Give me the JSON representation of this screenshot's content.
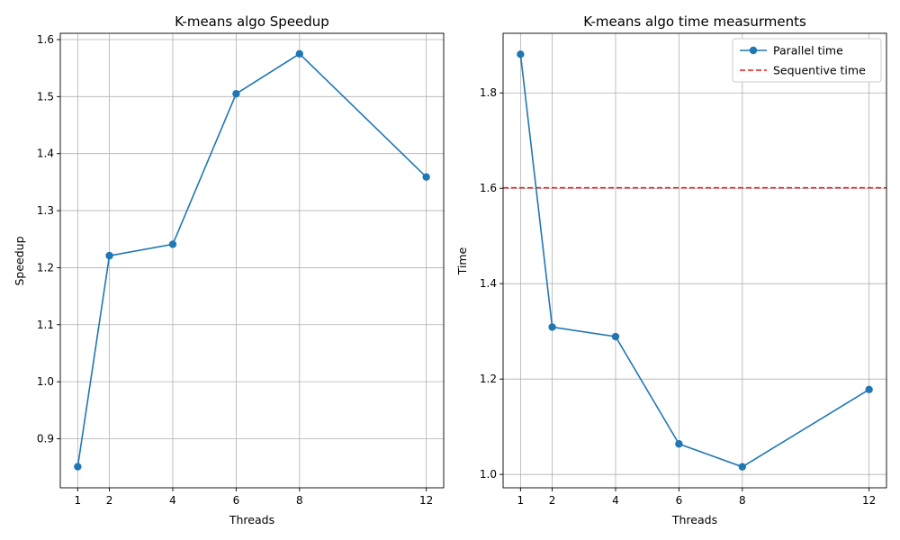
{
  "colors": {
    "series": "#1f77b4",
    "reference": "#e31a1c",
    "grid": "#b0b0b0",
    "axes": "#000000"
  },
  "chart_data": [
    {
      "type": "line",
      "title": "K-means algo Speedup",
      "xlabel": "Threads",
      "ylabel": "Speedup",
      "grid": true,
      "x": [
        1,
        2,
        4,
        6,
        8,
        12
      ],
      "xticks": [
        1,
        2,
        4,
        6,
        8,
        12
      ],
      "yticks": [
        0.9,
        1.0,
        1.1,
        1.2,
        1.3,
        1.4,
        1.5,
        1.6
      ],
      "ytick_labels": [
        "0.9",
        "1.0",
        "1.1",
        "1.2",
        "1.3",
        "1.4",
        "1.5",
        "1.6"
      ],
      "xlim": [
        0.45,
        12.55
      ],
      "ylim": [
        0.814,
        1.611
      ],
      "series": [
        {
          "values": [
            0.851,
            1.221,
            1.241,
            1.505,
            1.575,
            1.359
          ],
          "marker": "circle"
        }
      ]
    },
    {
      "type": "line",
      "title": "K-means algo time measurments",
      "xlabel": "Threads",
      "ylabel": "Time",
      "grid": true,
      "legend_position": "top-right",
      "x": [
        1,
        2,
        4,
        6,
        8,
        12
      ],
      "xticks": [
        1,
        2,
        4,
        6,
        8,
        12
      ],
      "yticks": [
        1.0,
        1.2,
        1.4,
        1.6,
        1.8
      ],
      "ytick_labels": [
        "1.0",
        "1.2",
        "1.4",
        "1.6",
        "1.8"
      ],
      "xlim": [
        0.45,
        12.55
      ],
      "ylim": [
        0.972,
        1.925
      ],
      "series": [
        {
          "name": "Parallel time",
          "values": [
            1.881,
            1.309,
            1.289,
            1.064,
            1.016,
            1.178
          ],
          "marker": "circle"
        }
      ],
      "reference_lines": [
        {
          "name": "Sequentive time",
          "y": 1.601,
          "style": "dashed"
        }
      ]
    }
  ]
}
